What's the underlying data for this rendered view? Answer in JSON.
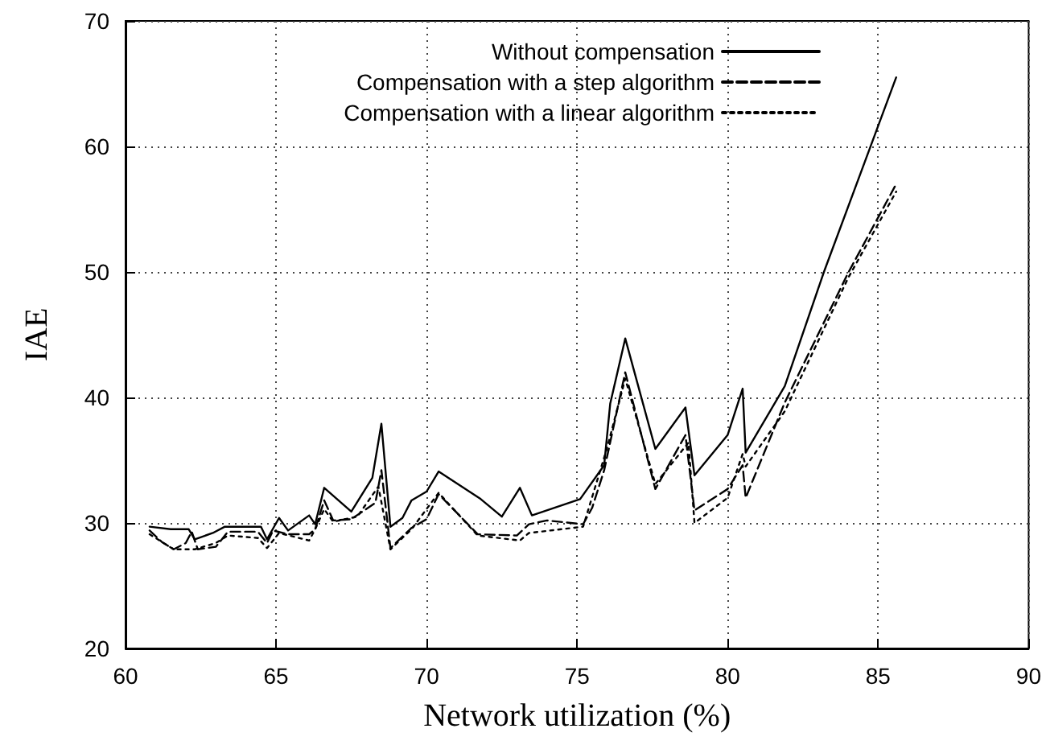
{
  "chart_data": {
    "type": "line",
    "xlabel": "Network utilization (%)",
    "ylabel": "IAE",
    "xlim": [
      60,
      90
    ],
    "xticks": [
      60,
      65,
      70,
      75,
      80,
      85,
      90
    ],
    "ylim": [
      20,
      70
    ],
    "yticks": [
      20,
      30,
      40,
      50,
      60,
      70
    ],
    "grid": true,
    "legend": "top right",
    "marker": "none",
    "series": [
      {
        "name": "Without compensation",
        "color": "#000000",
        "line_style": "solid",
        "x": [
          60.8,
          61.5,
          62.1,
          62.3,
          62.9,
          63.3,
          64.5,
          64.7,
          65.1,
          65.4,
          66.1,
          66.3,
          66.6,
          67.5,
          68.2,
          68.5,
          68.8,
          69.2,
          69.5,
          70.0,
          70.4,
          71.8,
          72.5,
          73.1,
          73.5,
          75.1,
          75.9,
          76.1,
          76.6,
          77.6,
          78.6,
          78.9,
          80.0,
          80.5,
          80.6,
          81.9,
          83.2,
          85.6
        ],
        "values": [
          29.7,
          29.5,
          29.5,
          28.7,
          29.2,
          29.7,
          29.7,
          28.7,
          30.4,
          29.4,
          30.6,
          29.9,
          32.8,
          30.9,
          33.6,
          37.9,
          29.7,
          30.4,
          31.8,
          32.5,
          34.1,
          31.9,
          30.5,
          32.8,
          30.6,
          31.9,
          34.6,
          39.5,
          44.7,
          35.9,
          39.2,
          33.8,
          37.0,
          40.7,
          35.6,
          40.9,
          50.0,
          65.5
        ]
      },
      {
        "name": "Compensation with a step algorithm",
        "color": "#000000",
        "line_style": "dashed",
        "x": [
          60.8,
          61.2,
          61.6,
          62.0,
          62.2,
          62.4,
          63.0,
          63.4,
          64.4,
          64.7,
          64.9,
          65.4,
          66.1,
          66.3,
          66.6,
          66.9,
          67.5,
          68.3,
          68.5,
          68.8,
          69.5,
          70.0,
          70.4,
          71.7,
          73.0,
          73.4,
          74.0,
          75.2,
          75.5,
          75.9,
          76.6,
          77.6,
          78.6,
          78.9,
          80.0,
          80.5,
          80.6,
          81.9,
          84.0,
          85.6
        ],
        "values": [
          29.4,
          28.5,
          27.9,
          28.4,
          29.3,
          27.9,
          28.1,
          29.3,
          29.3,
          28.4,
          29.4,
          29.1,
          29.1,
          29.5,
          31.8,
          30.2,
          30.3,
          31.6,
          34.2,
          28.0,
          29.6,
          30.3,
          32.3,
          29.1,
          29.0,
          29.9,
          30.2,
          29.9,
          31.2,
          34.2,
          42.0,
          32.7,
          37.0,
          31.0,
          32.7,
          34.6,
          32.0,
          39.6,
          49.9,
          57.0
        ]
      },
      {
        "name": "Compensation with a linear algorithm",
        "color": "#000000",
        "line_style": "dotted",
        "x": [
          60.8,
          61.6,
          62.3,
          63.0,
          63.4,
          64.4,
          64.7,
          65.1,
          66.1,
          66.3,
          66.6,
          66.9,
          67.7,
          68.4,
          68.8,
          69.5,
          70.4,
          71.7,
          73.1,
          73.4,
          75.2,
          76.0,
          76.6,
          77.6,
          78.7,
          78.9,
          80.0,
          80.5,
          80.6,
          81.9,
          84.0,
          85.6
        ],
        "values": [
          29.1,
          27.9,
          27.9,
          28.4,
          29.0,
          28.8,
          28.0,
          29.2,
          28.6,
          29.5,
          31.1,
          30.1,
          30.5,
          32.9,
          27.9,
          29.5,
          32.4,
          29.0,
          28.6,
          29.2,
          29.7,
          36.0,
          41.5,
          33.1,
          36.4,
          30.0,
          32.0,
          35.5,
          34.5,
          38.9,
          49.5,
          56.4
        ]
      }
    ]
  }
}
